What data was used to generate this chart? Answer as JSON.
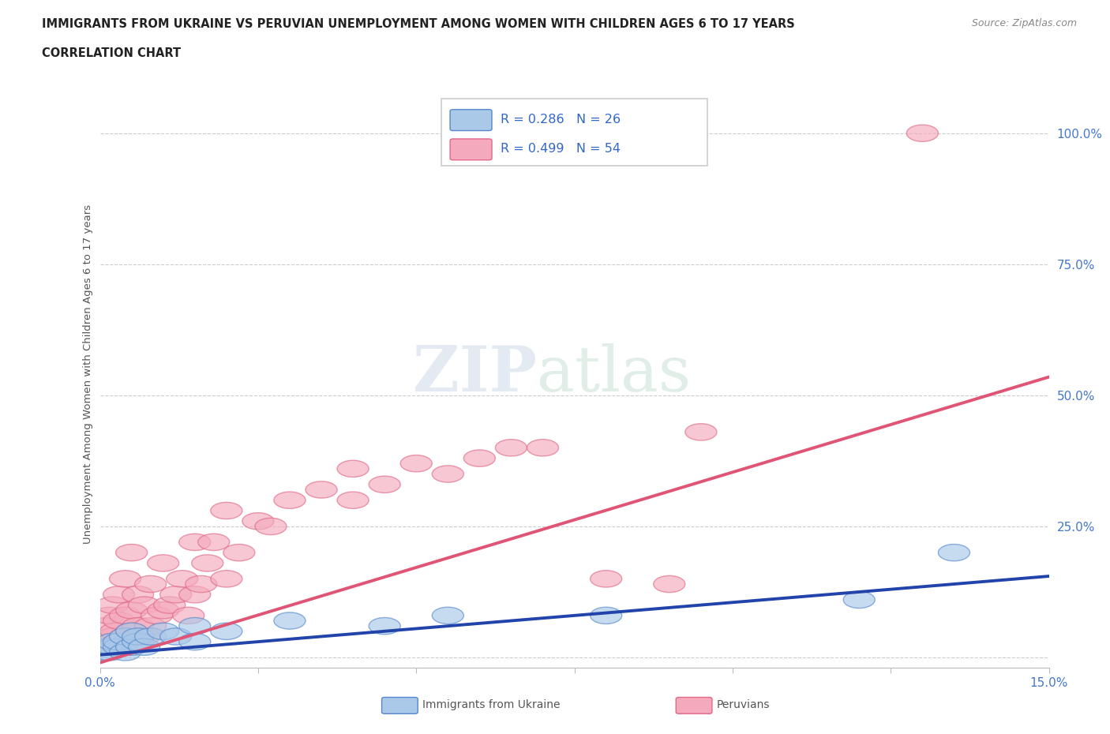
{
  "title_line1": "IMMIGRANTS FROM UKRAINE VS PERUVIAN UNEMPLOYMENT AMONG WOMEN WITH CHILDREN AGES 6 TO 17 YEARS",
  "title_line2": "CORRELATION CHART",
  "source_text": "Source: ZipAtlas.com",
  "ylabel": "Unemployment Among Women with Children Ages 6 to 17 years",
  "xlim": [
    0.0,
    0.15
  ],
  "ylim": [
    -0.02,
    1.1
  ],
  "xticks": [
    0.0,
    0.025,
    0.05,
    0.075,
    0.1,
    0.125,
    0.15
  ],
  "xticklabels_show": [
    "0.0%",
    "15.0%"
  ],
  "yticks": [
    0.0,
    0.25,
    0.5,
    0.75,
    1.0
  ],
  "yticklabels": [
    "",
    "25.0%",
    "50.0%",
    "75.0%",
    "100.0%"
  ],
  "grid_color": "#cccccc",
  "background_color": "#ffffff",
  "ukraine_color": "#aac8e8",
  "ukraine_edge_color": "#5588cc",
  "peru_color": "#f4aabc",
  "peru_edge_color": "#e06888",
  "ukraine_line_color": "#2244aa",
  "peru_line_color": "#e05575",
  "ukraine_R": 0.286,
  "ukraine_N": 26,
  "peru_R": 0.499,
  "peru_N": 54,
  "ukraine_line_x": [
    0.0,
    0.15
  ],
  "ukraine_line_y": [
    0.005,
    0.155
  ],
  "peru_line_x": [
    0.0,
    0.15
  ],
  "peru_line_y": [
    -0.01,
    0.535
  ],
  "ukraine_scatter_x": [
    0.0005,
    0.001,
    0.0015,
    0.002,
    0.002,
    0.003,
    0.003,
    0.004,
    0.004,
    0.005,
    0.005,
    0.006,
    0.006,
    0.007,
    0.008,
    0.01,
    0.012,
    0.015,
    0.015,
    0.02,
    0.03,
    0.045,
    0.055,
    0.08,
    0.12,
    0.135
  ],
  "ukraine_scatter_y": [
    0.01,
    0.02,
    0.01,
    0.02,
    0.03,
    0.02,
    0.03,
    0.01,
    0.04,
    0.02,
    0.05,
    0.03,
    0.04,
    0.02,
    0.04,
    0.05,
    0.04,
    0.06,
    0.03,
    0.05,
    0.07,
    0.06,
    0.08,
    0.08,
    0.11,
    0.2
  ],
  "peru_scatter_x": [
    0.0005,
    0.001,
    0.001,
    0.0015,
    0.0015,
    0.002,
    0.002,
    0.0025,
    0.003,
    0.003,
    0.003,
    0.004,
    0.004,
    0.004,
    0.005,
    0.005,
    0.005,
    0.006,
    0.006,
    0.007,
    0.007,
    0.008,
    0.008,
    0.009,
    0.01,
    0.01,
    0.011,
    0.012,
    0.013,
    0.014,
    0.015,
    0.015,
    0.016,
    0.017,
    0.018,
    0.02,
    0.02,
    0.022,
    0.025,
    0.027,
    0.03,
    0.035,
    0.04,
    0.04,
    0.045,
    0.05,
    0.055,
    0.06,
    0.065,
    0.07,
    0.08,
    0.09,
    0.095,
    0.13
  ],
  "peru_scatter_y": [
    0.02,
    0.03,
    0.06,
    0.02,
    0.08,
    0.04,
    0.1,
    0.05,
    0.03,
    0.07,
    0.12,
    0.04,
    0.08,
    0.15,
    0.05,
    0.09,
    0.2,
    0.06,
    0.12,
    0.04,
    0.1,
    0.06,
    0.14,
    0.08,
    0.09,
    0.18,
    0.1,
    0.12,
    0.15,
    0.08,
    0.12,
    0.22,
    0.14,
    0.18,
    0.22,
    0.15,
    0.28,
    0.2,
    0.26,
    0.25,
    0.3,
    0.32,
    0.3,
    0.36,
    0.33,
    0.37,
    0.35,
    0.38,
    0.4,
    0.4,
    0.15,
    0.14,
    0.43,
    1.0
  ]
}
